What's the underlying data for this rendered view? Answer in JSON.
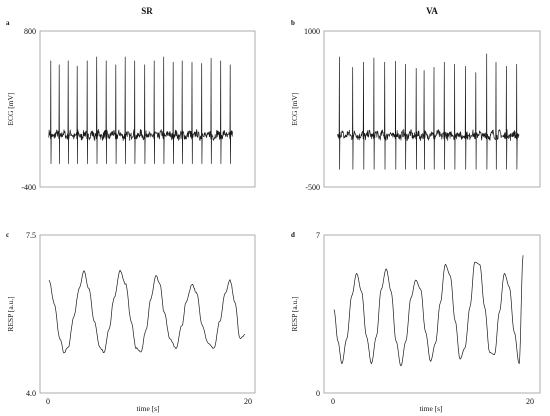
{
  "figure": {
    "titles": {
      "left": "SR",
      "right": "VA"
    },
    "xlabel": "time [s]"
  },
  "chart_data": [
    {
      "type": "line",
      "panel": "a",
      "column_title": "SR",
      "ylabel": "ECG [mV]",
      "ylim": [
        -400,
        800
      ],
      "y_ticks": [
        "800",
        "-400"
      ],
      "x_range": [
        0,
        20
      ],
      "grid": false,
      "series": [
        {
          "kind": "ecg",
          "baseline": 0,
          "r_peak_times": [
            0.28,
            1.12,
            2.02,
            2.92,
            3.92,
            4.87,
            5.82,
            6.78,
            7.72,
            8.67,
            9.67,
            10.62,
            11.57,
            12.52,
            13.42,
            14.4,
            15.37,
            16.31,
            17.27,
            18.22
          ],
          "r_peak_values": [
            570,
            540,
            570,
            530,
            570,
            600,
            570,
            540,
            600,
            570,
            540,
            570,
            600,
            560,
            570,
            560,
            550,
            590,
            570,
            540
          ],
          "s_trough_value": -220
        }
      ]
    },
    {
      "type": "line",
      "panel": "b",
      "column_title": "VA",
      "ylabel": "ECG [mV]",
      "ylim": [
        -500,
        1000
      ],
      "y_ticks": [
        "1000",
        "-500"
      ],
      "x_range": [
        0,
        20
      ],
      "grid": false,
      "series": [
        {
          "kind": "ecg",
          "baseline": 0,
          "r_peak_times": [
            0.65,
            2.0,
            3.1,
            4.15,
            5.25,
            6.35,
            7.35,
            8.45,
            9.25,
            10.25,
            11.3,
            12.35,
            13.45,
            14.5,
            15.6,
            16.55,
            17.6,
            18.65
          ],
          "r_peak_values": [
            750,
            650,
            700,
            740,
            700,
            710,
            680,
            640,
            620,
            650,
            700,
            680,
            660,
            600,
            780,
            700,
            660,
            680
          ],
          "s_trough_value": -330
        }
      ]
    },
    {
      "type": "line",
      "panel": "c",
      "ylabel": "RESP [a.u.]",
      "ylim": [
        4.0,
        7.5
      ],
      "y_ticks": [
        "7.5",
        "4.0"
      ],
      "x_ticks": [
        "0",
        "20"
      ],
      "xlabel": "time [s]",
      "x_range": [
        0,
        20
      ],
      "grid": false,
      "series": [
        {
          "kind": "resp",
          "x": [
            0.1,
            0.6,
            1.2,
            1.6,
            2.0,
            2.6,
            3.1,
            3.6,
            4.1,
            4.6,
            5.2,
            5.6,
            6.1,
            6.6,
            7.2,
            7.8,
            8.3,
            8.8,
            9.3,
            9.8,
            10.3,
            10.8,
            11.2,
            11.6,
            12.2,
            12.8,
            13.4,
            13.8,
            14.4,
            14.9,
            15.4,
            16.0,
            16.6,
            17.2,
            17.7,
            18.2,
            18.7,
            19.2,
            19.7
          ],
          "y": [
            6.5,
            6.0,
            5.2,
            4.9,
            5.0,
            5.7,
            6.3,
            6.7,
            6.3,
            5.6,
            5.0,
            4.9,
            5.4,
            6.1,
            6.7,
            6.4,
            5.6,
            5.0,
            4.9,
            5.4,
            6.1,
            6.6,
            6.4,
            5.8,
            5.2,
            5.0,
            5.5,
            6.0,
            6.4,
            6.2,
            5.5,
            5.1,
            5.0,
            5.6,
            6.2,
            6.5,
            6.0,
            5.2,
            5.3
          ]
        }
      ]
    },
    {
      "type": "line",
      "panel": "d",
      "ylabel": "RESP [a.u.]",
      "ylim": [
        0,
        7
      ],
      "y_ticks": [
        "7",
        "0"
      ],
      "x_ticks": [
        "0",
        "20"
      ],
      "xlabel": "time [s]",
      "x_range": [
        0,
        20
      ],
      "grid": false,
      "series": [
        {
          "kind": "resp",
          "x": [
            0.1,
            0.5,
            0.9,
            1.4,
            1.9,
            2.4,
            2.9,
            3.4,
            3.9,
            4.4,
            4.9,
            5.4,
            5.9,
            6.4,
            6.9,
            7.4,
            7.9,
            8.4,
            8.9,
            9.4,
            9.9,
            10.4,
            10.9,
            11.4,
            11.9,
            12.4,
            12.9,
            13.4,
            13.9,
            14.4,
            14.9,
            15.4,
            15.9,
            16.4,
            16.9,
            17.4,
            17.9,
            18.4,
            18.9,
            19.3
          ],
          "y": [
            3.7,
            2.3,
            1.3,
            2.4,
            4.3,
            5.3,
            4.5,
            2.5,
            1.3,
            2.5,
            4.6,
            5.5,
            4.5,
            2.3,
            1.2,
            2.3,
            4.2,
            5.0,
            4.6,
            2.7,
            1.4,
            2.2,
            4.0,
            5.7,
            5.2,
            3.2,
            1.5,
            2.0,
            3.8,
            5.8,
            5.7,
            3.8,
            1.8,
            1.7,
            3.6,
            5.3,
            4.7,
            2.7,
            1.3,
            6.1
          ]
        }
      ]
    }
  ]
}
